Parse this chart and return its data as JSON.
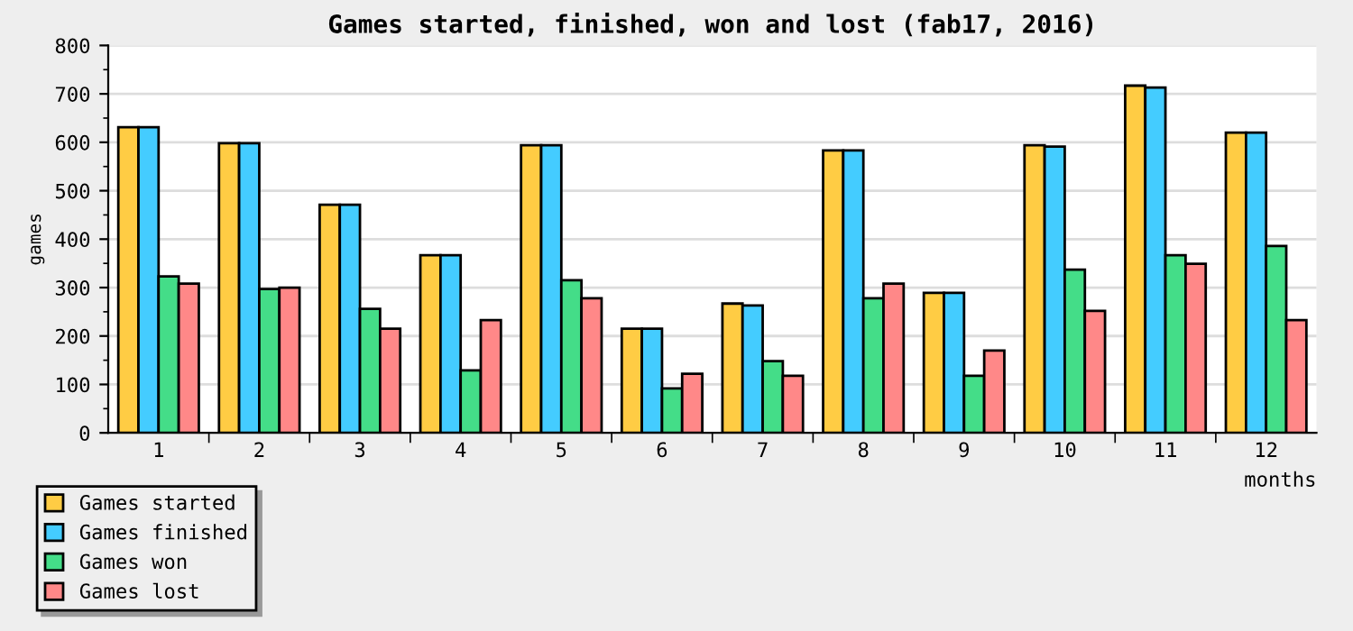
{
  "chart_data": {
    "type": "bar",
    "title": "Games started, finished, won and lost (fab17, 2016)",
    "xlabel": "months",
    "ylabel": "games",
    "categories": [
      "1",
      "2",
      "3",
      "4",
      "5",
      "6",
      "7",
      "8",
      "9",
      "10",
      "11",
      "12"
    ],
    "series": [
      {
        "name": "Games started",
        "color": "#ffcc44",
        "values": [
          631,
          598,
          471,
          367,
          594,
          215,
          267,
          583,
          289,
          594,
          717,
          620
        ]
      },
      {
        "name": "Games finished",
        "color": "#44ccff",
        "values": [
          631,
          598,
          471,
          367,
          594,
          215,
          263,
          583,
          289,
          591,
          713,
          620
        ]
      },
      {
        "name": "Games won",
        "color": "#44dd88",
        "values": [
          323,
          297,
          256,
          129,
          315,
          92,
          148,
          278,
          118,
          337,
          367,
          386
        ]
      },
      {
        "name": "Games lost",
        "color": "#ff8888",
        "values": [
          308,
          300,
          215,
          233,
          278,
          122,
          118,
          308,
          170,
          252,
          349,
          233
        ]
      }
    ],
    "ylim": [
      0,
      800
    ],
    "yticks": [
      0,
      100,
      200,
      300,
      400,
      500,
      600,
      700,
      800
    ],
    "grid": "y",
    "legend": "bottom left"
  }
}
